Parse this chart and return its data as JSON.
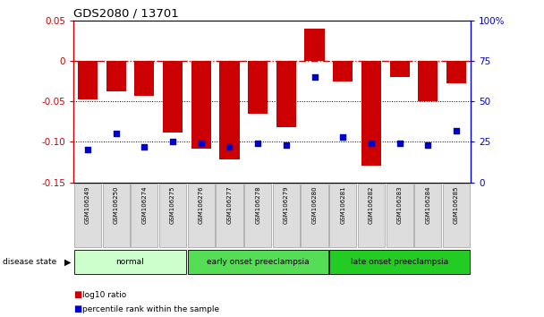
{
  "title": "GDS2080 / 13701",
  "samples": [
    "GSM106249",
    "GSM106250",
    "GSM106274",
    "GSM106275",
    "GSM106276",
    "GSM106277",
    "GSM106278",
    "GSM106279",
    "GSM106280",
    "GSM106281",
    "GSM106282",
    "GSM106283",
    "GSM106284",
    "GSM106285"
  ],
  "log10_ratio": [
    -0.048,
    -0.038,
    -0.043,
    -0.088,
    -0.108,
    -0.122,
    -0.065,
    -0.082,
    0.04,
    -0.025,
    -0.13,
    -0.02,
    -0.05,
    -0.028
  ],
  "percentile_rank": [
    20,
    30,
    22,
    25,
    24,
    22,
    24,
    23,
    65,
    28,
    24,
    24,
    23,
    32
  ],
  "groups": [
    {
      "label": "normal",
      "start": 0,
      "end": 4,
      "color": "#ccffcc"
    },
    {
      "label": "early onset preeclampsia",
      "start": 4,
      "end": 9,
      "color": "#55dd55"
    },
    {
      "label": "late onset preeclampsia",
      "start": 9,
      "end": 14,
      "color": "#22cc22"
    }
  ],
  "bar_color": "#cc0000",
  "dot_color": "#0000cc",
  "ylim_left": [
    -0.15,
    0.05
  ],
  "ylim_right": [
    0,
    100
  ],
  "yticks_left": [
    -0.15,
    -0.1,
    -0.05,
    0.0,
    0.05
  ],
  "yticks_right": [
    0,
    25,
    50,
    75,
    100
  ],
  "hline_y": 0.0,
  "dotline1": -0.05,
  "dotline2": -0.1,
  "background_color": "#ffffff"
}
